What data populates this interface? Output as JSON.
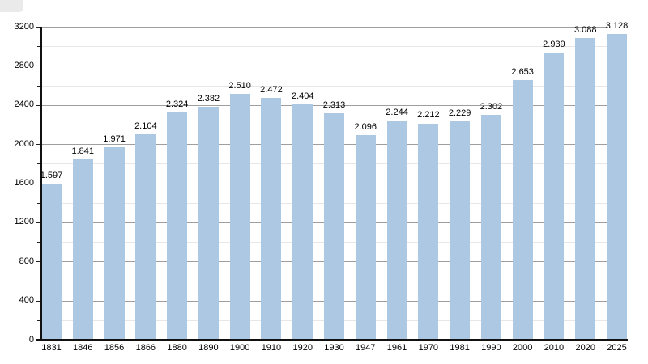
{
  "page": {
    "background_color": "#ffffff",
    "corner_artifact_color": "#eaeaea"
  },
  "chart_data": {
    "type": "bar",
    "title": "",
    "xlabel": "",
    "ylabel": "",
    "categories": [
      "1831",
      "1846",
      "1856",
      "1866",
      "1880",
      "1890",
      "1900",
      "1910",
      "1920",
      "1930",
      "1947",
      "1961",
      "1970",
      "1981",
      "1990",
      "2000",
      "2010",
      "2020",
      "2025"
    ],
    "values": [
      1597,
      1841,
      1971,
      2104,
      2324,
      2382,
      2510,
      2472,
      2404,
      2313,
      2096,
      2244,
      2212,
      2229,
      2302,
      2653,
      2939,
      3088,
      3128
    ],
    "value_labels": [
      "1.597",
      "1.841",
      "1.971",
      "2.104",
      "2.324",
      "2.382",
      "2.510",
      "2.472",
      "2.404",
      "2.313",
      "2.096",
      "2.244",
      "2.212",
      "2.229",
      "2.302",
      "2.653",
      "2.939",
      "3.088",
      "3.128"
    ],
    "ylim": [
      0,
      3200
    ],
    "y_major_ticks": [
      0,
      400,
      800,
      1200,
      1600,
      2000,
      2400,
      2800,
      3200
    ],
    "y_major_tick_labels": [
      "0",
      "400",
      "800",
      "1200",
      "1600",
      "2000",
      "2400",
      "2800",
      "3200"
    ],
    "y_minor_step": 200,
    "grid": true,
    "legend": false,
    "bar_color": "#adc8e2",
    "major_grid_color": "#9e9e9e",
    "minor_grid_color": "#e7e7e7",
    "axis_color": "#111111",
    "label_color": "#000000"
  }
}
